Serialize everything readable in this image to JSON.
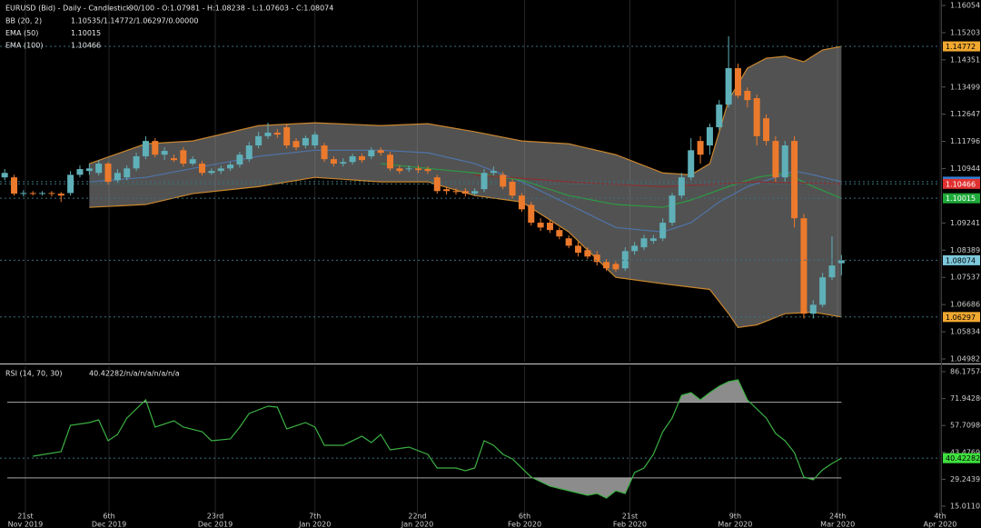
{
  "chart_data": [
    {
      "type": "candlestick",
      "title": "EURUSD (Bid) - Daily - Candlestick",
      "subtitle": "90/100 - O:1.07981 - H:1.08238 - L:1.07603 - C:1.08074",
      "up_color": "#5fb0b8",
      "down_color": "#ec7a2c",
      "marker_color": "#7ec8dc",
      "marker_text_color": "#000000",
      "open": [
        1.1067,
        1.1067,
        1.1016,
        1.1018,
        1.1016,
        1.1018,
        1.1016,
        1.1018,
        1.1075,
        1.1087,
        1.1081,
        1.111,
        1.1058,
        1.1067,
        1.1095,
        1.1133,
        1.1181,
        1.1138,
        1.1127,
        1.1152,
        1.111,
        1.111,
        1.1081,
        1.1087,
        1.1095,
        1.1107,
        1.1124,
        1.1167,
        1.1196,
        1.1207,
        1.1224,
        1.1181,
        1.1167,
        1.1167,
        1.1167,
        1.1124,
        1.111,
        1.1115,
        1.1133,
        1.1133,
        1.1152,
        1.1138,
        1.1095,
        1.1093,
        1.1095,
        1.1093,
        1.1067,
        1.103,
        1.1024,
        1.1024,
        1.1016,
        1.103,
        1.1081,
        1.1075,
        1.1053,
        1.101,
        1.0981,
        1.0925,
        1.0925,
        1.0902,
        1.0876,
        1.0853,
        1.0839,
        1.0825,
        1.0802,
        1.0796,
        1.0782,
        1.0836,
        1.0848,
        1.0868,
        1.0876,
        1.0925,
        1.101,
        1.1067,
        1.1181,
        1.1167,
        1.1224,
        1.1295,
        1.1409,
        1.1338,
        1.1315,
        1.1252,
        1.1181,
        1.1067,
        1.1181,
        1.0939,
        1.064,
        1.0668,
        1.0754,
        1.07981
      ],
      "high": [
        1.1093,
        1.1075,
        1.1027,
        1.1024,
        1.1024,
        1.1024,
        1.1021,
        1.1087,
        1.1104,
        1.111,
        1.1121,
        1.1115,
        1.1093,
        1.1104,
        1.1144,
        1.1196,
        1.119,
        1.1161,
        1.1138,
        1.1161,
        1.1133,
        1.1118,
        1.1095,
        1.1104,
        1.1115,
        1.1147,
        1.1178,
        1.121,
        1.1238,
        1.1218,
        1.1235,
        1.119,
        1.1198,
        1.121,
        1.1175,
        1.1133,
        1.1127,
        1.1141,
        1.1141,
        1.1161,
        1.1161,
        1.1147,
        1.1104,
        1.1104,
        1.1104,
        1.1101,
        1.1075,
        1.1038,
        1.1033,
        1.1033,
        1.1033,
        1.1093,
        1.1101,
        1.1084,
        1.1061,
        1.1018,
        1.099,
        1.0939,
        1.0933,
        1.091,
        1.0885,
        1.0865,
        1.0848,
        1.0836,
        1.0811,
        1.0805,
        1.0848,
        1.0865,
        1.0887,
        1.0887,
        1.0939,
        1.1018,
        1.1081,
        1.119,
        1.1196,
        1.1235,
        1.1309,
        1.1509,
        1.1423,
        1.1349,
        1.1326,
        1.1264,
        1.1196,
        1.1181,
        1.1196,
        1.0953,
        1.0682,
        1.0768,
        1.0882,
        1.08238
      ],
      "low": [
        1.1058,
        1.101,
        1.1007,
        1.101,
        1.101,
        1.1007,
        1.099,
        1.101,
        1.1067,
        1.1075,
        1.1073,
        1.1044,
        1.105,
        1.1058,
        1.1087,
        1.1124,
        1.113,
        1.1121,
        1.1115,
        1.1101,
        1.1104,
        1.1073,
        1.1075,
        1.1078,
        1.1087,
        1.1098,
        1.1115,
        1.1158,
        1.1187,
        1.119,
        1.1158,
        1.1152,
        1.1158,
        1.1158,
        1.1115,
        1.1101,
        1.1101,
        1.1107,
        1.1113,
        1.1124,
        1.1135,
        1.1087,
        1.1078,
        1.1084,
        1.1081,
        1.1078,
        1.1016,
        1.1013,
        1.1013,
        1.1007,
        1.101,
        1.1021,
        1.1073,
        1.103,
        1.1001,
        1.0959,
        1.0916,
        1.0899,
        1.0893,
        1.0873,
        1.0845,
        1.0819,
        1.0811,
        1.0791,
        1.0774,
        1.0771,
        1.0774,
        1.0825,
        1.0839,
        1.0859,
        1.0868,
        1.0916,
        1.1001,
        1.1058,
        1.111,
        1.1138,
        1.1215,
        1.1286,
        1.1315,
        1.1286,
        1.1167,
        1.1167,
        1.1053,
        1.1053,
        1.091,
        1.0625,
        1.0625,
        1.066,
        1.0745,
        1.07603
      ],
      "close": [
        1.1081,
        1.1016,
        1.1018,
        1.1016,
        1.1018,
        1.1016,
        1.101,
        1.1075,
        1.1093,
        1.1095,
        1.111,
        1.1053,
        1.1081,
        1.1095,
        1.1133,
        1.1181,
        1.1138,
        1.115,
        1.1121,
        1.111,
        1.1124,
        1.1081,
        1.1087,
        1.1095,
        1.1107,
        1.1138,
        1.1167,
        1.1196,
        1.1207,
        1.1201,
        1.1167,
        1.1161,
        1.119,
        1.1201,
        1.1124,
        1.111,
        1.1115,
        1.1133,
        1.1121,
        1.1152,
        1.1144,
        1.1095,
        1.1087,
        1.1095,
        1.109,
        1.1087,
        1.1024,
        1.1024,
        1.1021,
        1.1016,
        1.1024,
        1.1081,
        1.1087,
        1.1038,
        1.101,
        1.0967,
        1.0925,
        1.091,
        1.0902,
        1.0882,
        1.0853,
        1.0831,
        1.0819,
        1.0802,
        1.0782,
        1.0779,
        1.0836,
        1.0853,
        1.0876,
        1.0876,
        1.0925,
        1.101,
        1.1067,
        1.1152,
        1.1138,
        1.1224,
        1.1295,
        1.1409,
        1.1323,
        1.1309,
        1.1196,
        1.1181,
        1.1067,
        1.1167,
        1.0939,
        1.064,
        1.0668,
        1.0754,
        1.0791,
        1.08074
      ],
      "series": [
        {
          "name": "BB (20, 2)",
          "readout": "1.10535/1.14772/1.06297/0.00000",
          "fill": "rgba(150,150,150,0.55)",
          "lines": [
            {
              "color": "#c8862e",
              "marker_color": "#f0a830",
              "marker_text_color": "#000000",
              "x": [
                9,
                15,
                20,
                27,
                33,
                40,
                45,
                50,
                55,
                60,
                65,
                70,
                73,
                75,
                77,
                79,
                81,
                83,
                85,
                87,
                89
              ],
              "values": [
                1.111,
                1.1172,
                1.1181,
                1.1229,
                1.1238,
                1.1229,
                1.1235,
                1.121,
                1.1181,
                1.1172,
                1.1138,
                1.1081,
                1.1075,
                1.111,
                1.1309,
                1.1409,
                1.144,
                1.1446,
                1.1429,
                1.1466,
                1.14772
              ]
            },
            {
              "color": "#4f74a8",
              "marker_color": "#2f7fd8",
              "marker_text_color": "#ffffff",
              "x": [
                9,
                15,
                20,
                27,
                33,
                40,
                45,
                50,
                55,
                60,
                65,
                70,
                73,
                76,
                79,
                82,
                84,
                86,
                89
              ],
              "values": [
                1.1053,
                1.1067,
                1.1095,
                1.1133,
                1.1152,
                1.1152,
                1.1144,
                1.111,
                1.1053,
                1.0982,
                1.091,
                1.0896,
                1.0925,
                1.099,
                1.1038,
                1.1067,
                1.1087,
                1.1075,
                1.10535
              ]
            },
            {
              "color": "#c8862e",
              "marker_color": "#f0a830",
              "marker_text_color": "#000000",
              "x": [
                9,
                15,
                20,
                27,
                33,
                40,
                45,
                50,
                55,
                60,
                65,
                70,
                75,
                77,
                78,
                80,
                83,
                86,
                89
              ],
              "values": [
                1.0973,
                1.0982,
                1.1016,
                1.1038,
                1.1067,
                1.1053,
                1.1053,
                1.101,
                1.099,
                1.0896,
                1.0754,
                1.0734,
                1.0716,
                1.064,
                1.0597,
                1.0605,
                1.064,
                1.0645,
                1.06297
              ]
            }
          ]
        },
        {
          "name": "EMA (50)",
          "color": "#2e9a44",
          "marker_color": "#1faa3a",
          "marker_text_color": "#ffffff",
          "x": [
            40,
            45,
            50,
            55,
            60,
            65,
            70,
            73,
            77,
            80,
            83,
            86,
            89
          ],
          "values": [
            1.111,
            1.1095,
            1.1081,
            1.1058,
            1.101,
            1.0982,
            1.0973,
            1.0996,
            1.1038,
            1.1067,
            1.1081,
            1.1038,
            1.10015
          ]
        },
        {
          "name": "EMA (100)",
          "color": "#8a3030",
          "marker_color": "#e03030",
          "marker_text_color": "#ffffff",
          "x": [
            50,
            60,
            70,
            80,
            89
          ],
          "values": [
            1.1075,
            1.1053,
            1.1038,
            1.1053,
            1.10466
          ]
        }
      ],
      "xlim": [
        -0.5,
        99.5
      ],
      "xticks": [
        {
          "value": 2.2,
          "label": "21st",
          "period": "Nov 2019"
        },
        {
          "value": 11.1,
          "label": "6th",
          "period": "Dec 2019"
        },
        {
          "value": 22.4,
          "label": "23rd",
          "period": "Dec 2019"
        },
        {
          "value": 33.0,
          "label": "7th",
          "period": "Jan 2020"
        },
        {
          "value": 43.9,
          "label": "22nd",
          "period": "Jan 2020"
        },
        {
          "value": 55.3,
          "label": "6th",
          "period": "Feb 2020"
        },
        {
          "value": 66.5,
          "label": "21st",
          "period": "Feb 2020"
        },
        {
          "value": 77.7,
          "label": "9th",
          "period": "Mar 2020"
        },
        {
          "value": 88.6,
          "label": "24th",
          "period": "Mar 2020"
        },
        {
          "value": 99.5,
          "label": "4th",
          "period": "Apr 2020"
        }
      ],
      "ylim": [
        1.04897,
        1.16225
      ],
      "yticks": [
        1.16054,
        1.15203,
        1.14351,
        1.13499,
        1.12647,
        1.11796,
        1.10944,
        1.09241,
        1.08389,
        1.07537,
        1.06686,
        1.05834,
        1.04982
      ],
      "grid": "x"
    },
    {
      "type": "line",
      "title": "RSI (14, 70, 30)",
      "readout": "40.42282/n/a/n/a/n/a/n/a",
      "color": "#3cb043",
      "marker_color": "#3ee03e",
      "marker_text_color": "#000000",
      "levels": [
        70,
        30
      ],
      "level_color": "#a8a8a8",
      "level_fill": "#8c8c8c",
      "x": [
        3,
        6,
        7,
        9,
        10,
        11,
        12,
        13,
        15,
        16,
        18,
        19,
        21,
        22,
        24,
        25,
        26,
        28,
        29,
        30,
        32,
        33,
        34,
        36,
        38,
        39,
        40,
        41,
        43,
        45,
        46,
        48,
        49,
        50,
        51,
        52,
        53,
        54,
        55,
        56,
        57,
        58,
        60,
        62,
        63,
        64,
        65,
        66,
        67,
        68,
        69,
        70,
        71,
        72,
        73,
        74,
        75,
        76,
        77,
        78,
        79,
        81,
        82,
        83,
        84,
        85,
        86,
        87,
        88,
        89
      ],
      "values": [
        41.46,
        43.86,
        57.81,
        59.25,
        60.69,
        49.64,
        53,
        61.66,
        71.27,
        56.85,
        60.21,
        56.85,
        54.44,
        49.64,
        50.6,
        56.85,
        64.06,
        67.9,
        67.43,
        55.89,
        59.25,
        56.85,
        47.23,
        47.23,
        52.04,
        48.68,
        53,
        44.83,
        46.27,
        42.42,
        35.21,
        35.21,
        33.77,
        35.21,
        49.64,
        47.23,
        42.42,
        40.02,
        35.21,
        30.4,
        28,
        25.59,
        23.19,
        20.79,
        21.75,
        19.34,
        23.19,
        21.75,
        32.81,
        35.21,
        42.42,
        54.44,
        61.66,
        73.67,
        75.12,
        71.27,
        75.12,
        78.48,
        80.89,
        81.85,
        71.27,
        61.66,
        53.48,
        49.64,
        43.38,
        30.4,
        28.96,
        34.25,
        37.61,
        40.42282
      ],
      "ylim": [
        11.16,
        89.06
      ],
      "yticks": [
        86.17574,
        {
          "value": 71.9428,
          "label": "71.94280"
        },
        57.70986,
        43.47691,
        29.24397,
        15.01103
      ],
      "grid": "x"
    }
  ]
}
